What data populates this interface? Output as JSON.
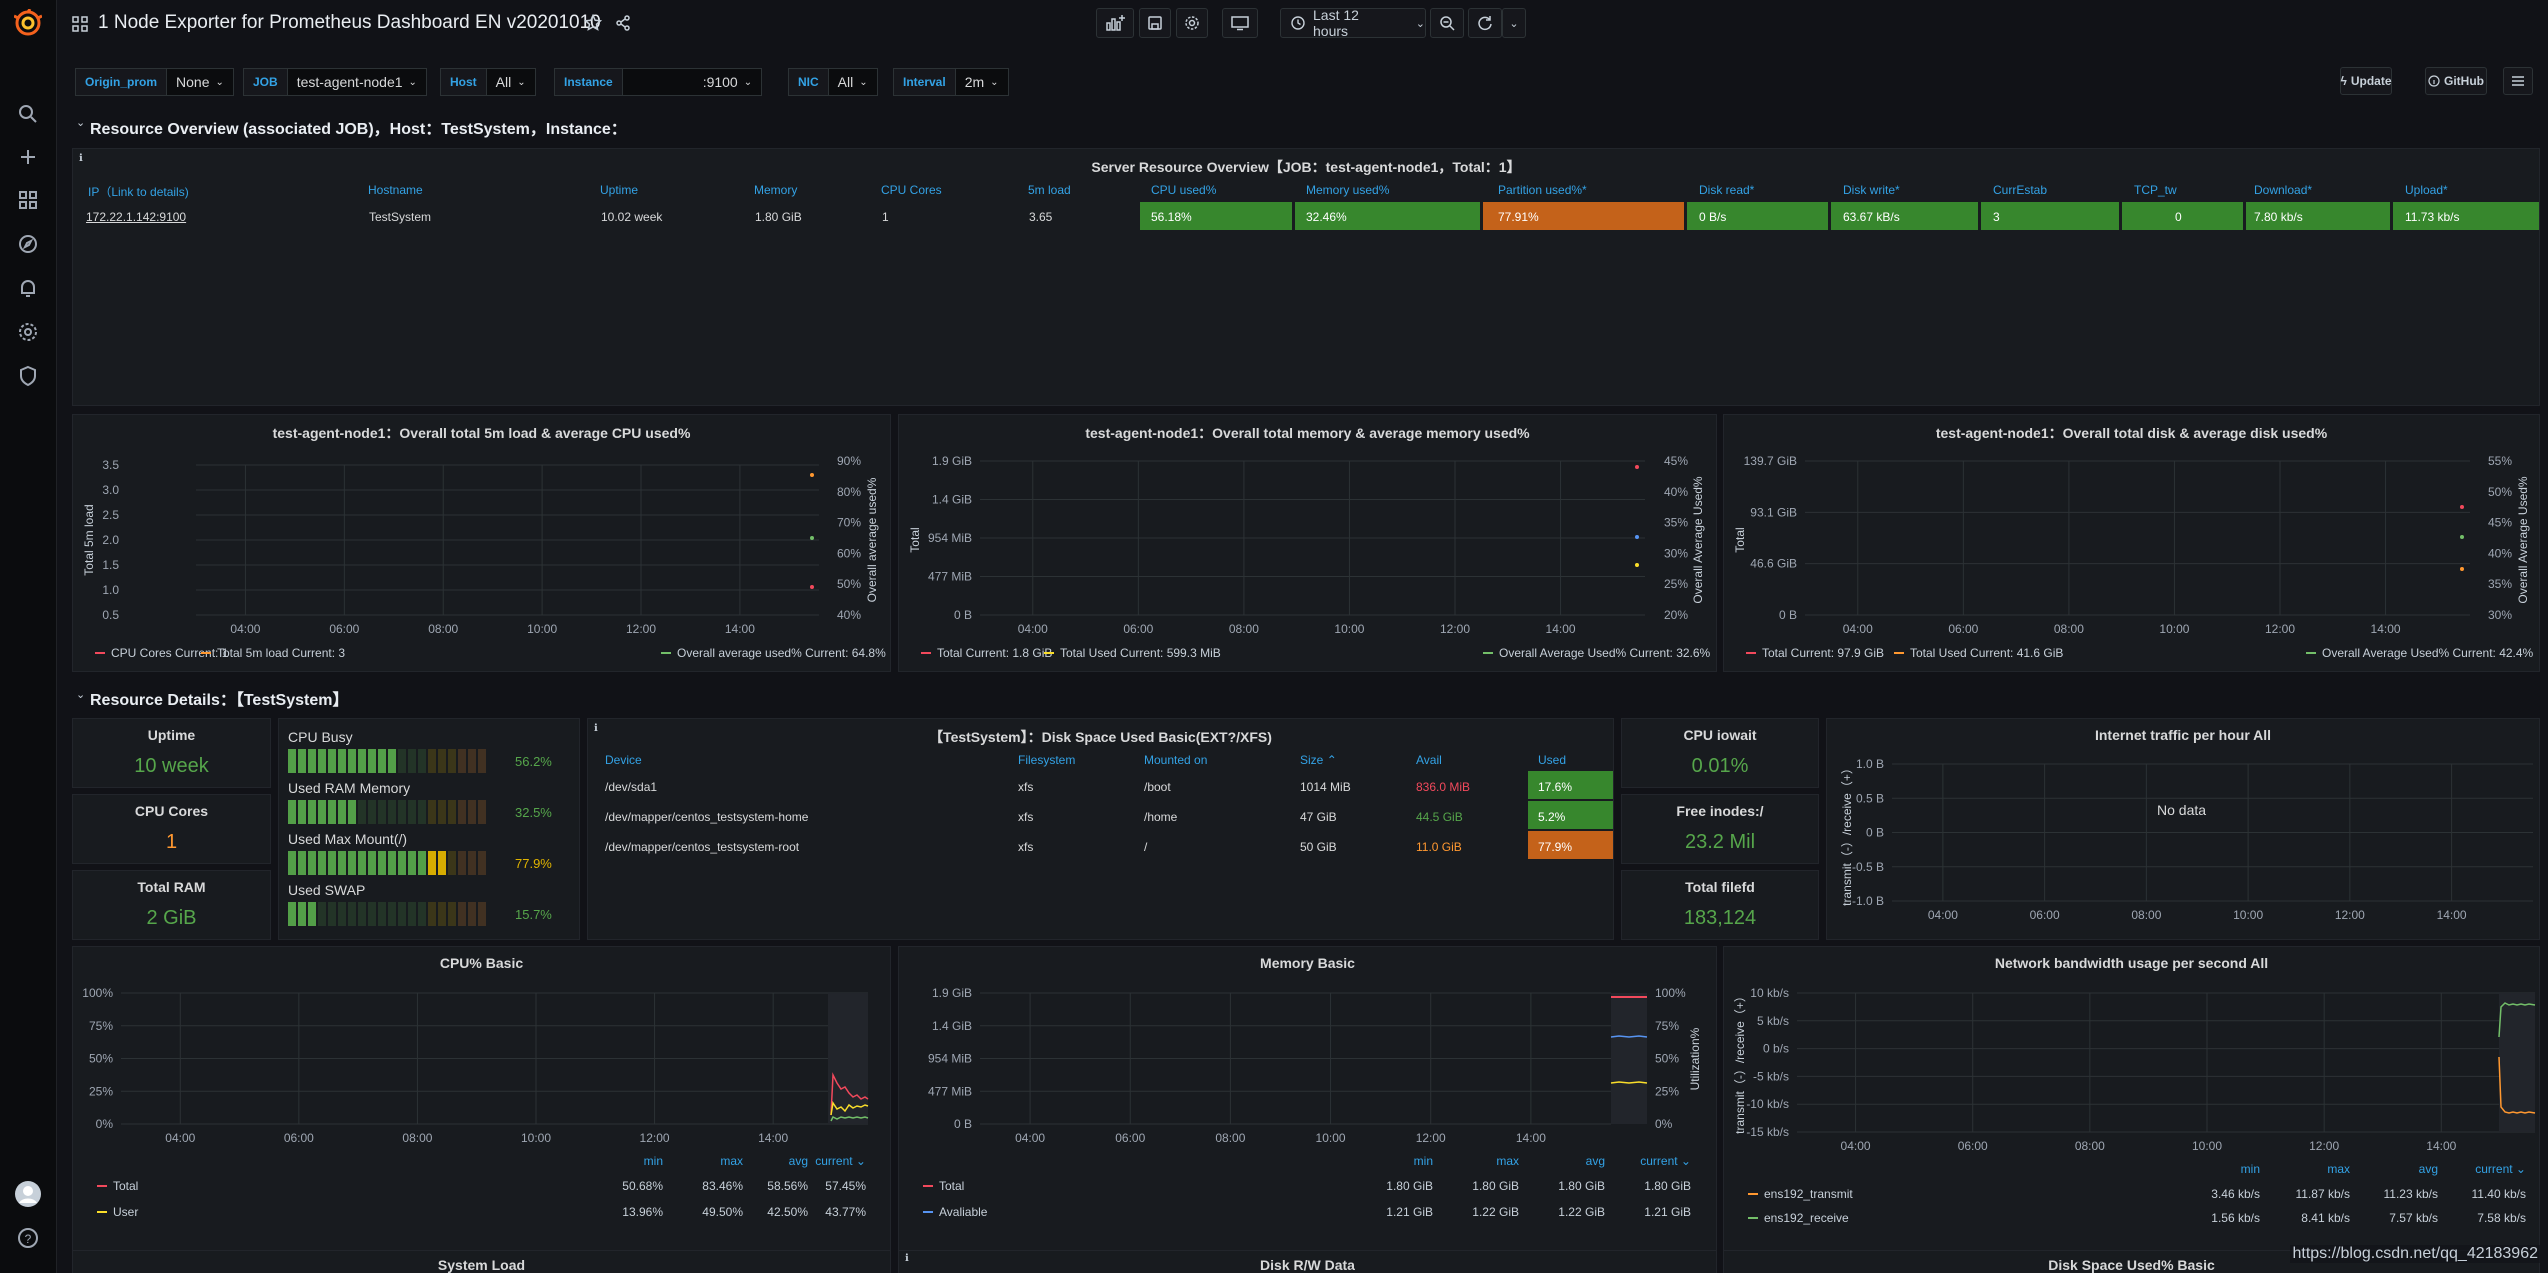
{
  "app": {
    "title": "1 Node Exporter for Prometheus Dashboard EN v20201010",
    "time_range": "Last 12 hours",
    "update_label": "Update",
    "github_label": "GitHub"
  },
  "sidebar": {
    "icons": [
      "grafana-logo",
      "search-icon",
      "plus-icon",
      "dashboards-icon",
      "explore-icon",
      "alerting-icon",
      "configuration-icon",
      "shield-icon",
      "avatar",
      "help-icon"
    ]
  },
  "variables": [
    {
      "label": "Origin_prom",
      "value": "None"
    },
    {
      "label": "JOB",
      "value": "test-agent-node1"
    },
    {
      "label": "Host",
      "value": "All"
    },
    {
      "label": "Instance",
      "value": ":9100"
    },
    {
      "label": "NIC",
      "value": "All"
    },
    {
      "label": "Interval",
      "value": "2m"
    }
  ],
  "rows": {
    "overview": "Resource Overview (associated JOB)，Host：TestSystem，Instance：",
    "details": "Resource Details：【TestSystem】"
  },
  "server_table": {
    "title": "Server Resource Overview【JOB：test-agent-node1，Total：1】",
    "columns": [
      "IP（Link to details)",
      "Hostname",
      "Uptime",
      "Memory",
      "CPU Cores",
      "5m load",
      "CPU used%",
      "Memory used%",
      "Partition used%*",
      "Disk read*",
      "Disk write*",
      "CurrEstab",
      "TCP_tw",
      "Download*",
      "Upload*"
    ],
    "row": [
      "172.22.1.142:9100",
      "TestSystem",
      "10.02 week",
      "1.80 GiB",
      "1",
      "3.65",
      "56.18%",
      "32.46%",
      "77.91%",
      "0 B/s",
      "63.67 kB/s",
      "3",
      "0",
      "7.80 kb/s",
      "11.73 kb/s"
    ],
    "colors": {
      "green": "#37872d",
      "orange": "#c4621a"
    }
  },
  "graph1": {
    "title": "test-agent-node1：Overall total 5m load & average CPU used%",
    "ylabel_left": "Total 5m load",
    "ylabel_right": "Overall average used%",
    "yticks_left": [
      "3.5",
      "3.0",
      "2.5",
      "2.0",
      "1.5",
      "1.0",
      "0.5"
    ],
    "yticks_right": [
      "90%",
      "80%",
      "70%",
      "60%",
      "50%",
      "40%"
    ],
    "xticks": [
      "04:00",
      "06:00",
      "08:00",
      "10:00",
      "12:00",
      "14:00"
    ],
    "legend": [
      "CPU Cores  Current: 1",
      "Total 5m load  Current: 3",
      "Overall average used%  Current: 64.8%"
    ]
  },
  "graph2": {
    "title": "test-agent-node1：Overall total memory & average memory used%",
    "ylabel_left": "Total",
    "ylabel_right": "Overall Average Used%",
    "yticks_left": [
      "1.9 GiB",
      "1.4 GiB",
      "954 MiB",
      "477 MiB",
      "0 B"
    ],
    "yticks_right": [
      "45%",
      "40%",
      "35%",
      "30%",
      "25%",
      "20%"
    ],
    "xticks": [
      "04:00",
      "06:00",
      "08:00",
      "10:00",
      "12:00",
      "14:00"
    ],
    "legend": [
      "Total  Current: 1.8 GiB",
      "Total Used  Current: 599.3 MiB",
      "Overall Average Used%  Current: 32.6%"
    ]
  },
  "graph3": {
    "title": "test-agent-node1：Overall total disk & average disk used%",
    "ylabel_left": "Total",
    "ylabel_right": "Overall Average Used%",
    "yticks_left": [
      "139.7 GiB",
      "93.1 GiB",
      "46.6 GiB",
      "0 B"
    ],
    "yticks_right": [
      "55%",
      "50%",
      "45%",
      "40%",
      "35%",
      "30%"
    ],
    "xticks": [
      "04:00",
      "06:00",
      "08:00",
      "10:00",
      "12:00",
      "14:00"
    ],
    "legend": [
      "Total  Current: 97.9 GiB",
      "Total Used  Current: 41.6 GiB",
      "Overall Average Used%  Current: 42.4%"
    ]
  },
  "stats": {
    "uptime": {
      "title": "Uptime",
      "value": "10 week"
    },
    "cpu_cores": {
      "title": "CPU Cores",
      "value": "1"
    },
    "total_ram": {
      "title": "Total RAM",
      "value": "2 GiB"
    },
    "cpu_iowait": {
      "title": "CPU iowait",
      "value": "0.01%"
    },
    "free_inodes": {
      "title": "Free inodes:/",
      "value": "23.2 Mil"
    },
    "total_filefd": {
      "title": "Total filefd",
      "value": "183,124"
    }
  },
  "bargauges": [
    {
      "label": "CPU Busy",
      "value": "56.2%",
      "fraction": 0.562
    },
    {
      "label": "Used RAM Memory",
      "value": "32.5%",
      "fraction": 0.325
    },
    {
      "label": "Used Max Mount(/)",
      "value": "77.9%",
      "fraction": 0.779
    },
    {
      "label": "Used SWAP",
      "value": "15.7%",
      "fraction": 0.157
    }
  ],
  "disk_table": {
    "title": "【TestSystem】：Disk Space Used Basic(EXT?/XFS)",
    "columns": [
      "Device",
      "Filesystem",
      "Mounted on",
      "Size",
      "Avail",
      "Used"
    ],
    "rows": [
      [
        "/dev/sda1",
        "xfs",
        "/boot",
        "1014 MiB",
        "836.0 MiB",
        "17.6%"
      ],
      [
        "/dev/mapper/centos_testsystem-home",
        "xfs",
        "/home",
        "47 GiB",
        "44.5 GiB",
        "5.2%"
      ],
      [
        "/dev/mapper/centos_testsystem-root",
        "xfs",
        "/",
        "50 GiB",
        "11.0 GiB",
        "77.9%"
      ]
    ]
  },
  "traffic": {
    "title": "Internet traffic per hour All",
    "nodata": "No data",
    "ylabel": "transmit（-）/receive（+）",
    "yticks": [
      "1.0 B",
      "0.5 B",
      "0 B",
      "-0.5 B",
      "-1.0 B"
    ],
    "xticks": [
      "04:00",
      "06:00",
      "08:00",
      "10:00",
      "12:00",
      "14:00"
    ]
  },
  "cpu_basic": {
    "title": "CPU% Basic",
    "yticks": [
      "100%",
      "75%",
      "50%",
      "25%",
      "0%"
    ],
    "xticks": [
      "04:00",
      "06:00",
      "08:00",
      "10:00",
      "12:00",
      "14:00"
    ],
    "legend_cols": [
      "min",
      "max",
      "avg",
      "current"
    ],
    "legend": [
      {
        "name": "Total",
        "vals": [
          "50.68%",
          "83.46%",
          "58.56%",
          "57.45%"
        ]
      },
      {
        "name": "User",
        "vals": [
          "13.96%",
          "49.50%",
          "42.50%",
          "43.77%"
        ]
      }
    ]
  },
  "mem_basic": {
    "title": "Memory Basic",
    "ylabel_right": "Utilization%",
    "yticks_left": [
      "1.9 GiB",
      "1.4 GiB",
      "954 MiB",
      "477 MiB",
      "0 B"
    ],
    "yticks_right": [
      "100%",
      "75%",
      "50%",
      "25%",
      "0%"
    ],
    "xticks": [
      "04:00",
      "06:00",
      "08:00",
      "10:00",
      "12:00",
      "14:00"
    ],
    "legend_cols": [
      "min",
      "max",
      "avg",
      "current"
    ],
    "legend": [
      {
        "name": "Total",
        "vals": [
          "1.80 GiB",
          "1.80 GiB",
          "1.80 GiB",
          "1.80 GiB"
        ]
      },
      {
        "name": "Avaliable",
        "vals": [
          "1.21 GiB",
          "1.22 GiB",
          "1.22 GiB",
          "1.21 GiB"
        ]
      }
    ]
  },
  "net_bw": {
    "title": "Network bandwidth usage per second All",
    "ylabel": "transmit（-）/receive（+）",
    "yticks": [
      "10 kb/s",
      "5 kb/s",
      "0 b/s",
      "-5 kb/s",
      "-10 kb/s",
      "-15 kb/s"
    ],
    "xticks": [
      "04:00",
      "06:00",
      "08:00",
      "10:00",
      "12:00",
      "14:00"
    ],
    "legend_cols": [
      "min",
      "max",
      "avg",
      "current"
    ],
    "legend": [
      {
        "name": "ens192_transmit",
        "vals": [
          "3.46 kb/s",
          "11.87 kb/s",
          "11.23 kb/s",
          "11.40 kb/s"
        ]
      },
      {
        "name": "ens192_receive",
        "vals": [
          "1.56 kb/s",
          "8.41 kb/s",
          "7.57 kb/s",
          "7.58 kb/s"
        ]
      }
    ]
  },
  "bottom_titles": [
    "System Load",
    "Disk R/W Data",
    "Disk Space Used% Basic"
  ],
  "watermark": "https://blog.csdn.net/qq_42183962",
  "colors": {
    "accent": "#33a2e5",
    "green": "#56a64b",
    "orange": "#ff9830",
    "red": "#f2495c",
    "yellow": "#fade2a",
    "blue": "#5794f2"
  }
}
